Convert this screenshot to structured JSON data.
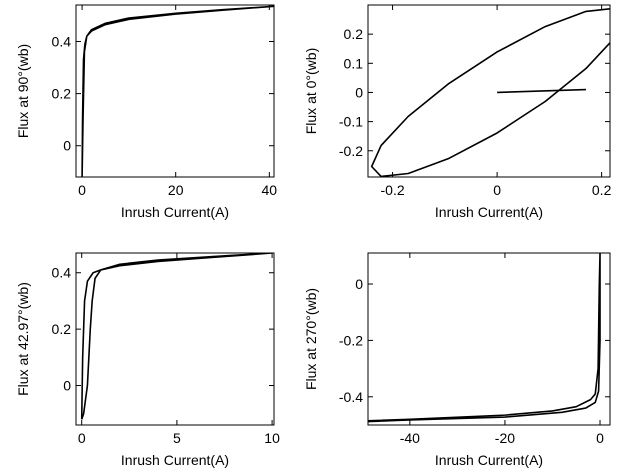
{
  "chart_data": [
    {
      "type": "line",
      "xlabel": "Inrush Current(A)",
      "ylabel": "Flux at 90°(wb)",
      "xlim": [
        -1.3,
        41
      ],
      "ylim": [
        -0.12,
        0.54
      ],
      "xticks": [
        0,
        20,
        40
      ],
      "yticks": [
        0,
        0.2,
        0.4
      ],
      "series": [
        {
          "color": "#000000",
          "x": [
            0,
            0.1,
            0.3,
            0.6,
            1,
            2,
            5,
            10,
            20,
            30,
            41,
            30,
            20,
            10,
            5,
            2,
            1,
            0.5,
            0.2,
            0
          ],
          "values": [
            -0.12,
            0.1,
            0.33,
            0.39,
            0.42,
            0.44,
            0.465,
            0.485,
            0.505,
            0.52,
            0.535,
            0.522,
            0.508,
            0.49,
            0.47,
            0.445,
            0.42,
            0.36,
            0.1,
            -0.12
          ]
        }
      ]
    },
    {
      "type": "line",
      "xlabel": "Inrush Current(A)",
      "ylabel": "Flux at 0°(wb)",
      "xlim": [
        -0.247,
        0.216
      ],
      "ylim": [
        -0.29,
        0.3
      ],
      "xticks": [
        -0.2,
        0,
        0.2
      ],
      "yticks": [
        -0.2,
        -0.1,
        0,
        0.1,
        0.2
      ],
      "series": [
        {
          "color": "#000000",
          "x": [
            0.24,
            0.222,
            0.17,
            0.092,
            0,
            -0.092,
            -0.17,
            -0.222,
            -0.24,
            -0.222,
            -0.17,
            -0.092,
            0,
            0.092,
            0.17,
            0.222,
            0.24
          ],
          "values": [
            0.254,
            0.288,
            0.278,
            0.226,
            0.139,
            0.031,
            -0.082,
            -0.182,
            -0.254,
            -0.288,
            -0.278,
            -0.226,
            -0.139,
            -0.031,
            0.082,
            0.182,
            0.254
          ]
        },
        {
          "color": "#000000",
          "x": [
            0,
            0.17
          ],
          "values": [
            0,
            0.01
          ]
        }
      ]
    },
    {
      "type": "line",
      "xlabel": "Inrush Current(A)",
      "ylabel": "Flux at 42.97°(wb)",
      "xlim": [
        -0.3,
        10.1
      ],
      "ylim": [
        -0.14,
        0.47
      ],
      "xticks": [
        0,
        5,
        10
      ],
      "yticks": [
        0,
        0.2,
        0.4
      ],
      "series": [
        {
          "color": "#000000",
          "x": [
            0,
            0.05,
            0.15,
            0.3,
            0.6,
            1,
            2,
            4,
            7,
            10,
            7,
            4,
            2,
            1,
            0.7,
            0.55,
            0.45,
            0.3,
            0.1,
            0
          ],
          "values": [
            -0.12,
            0.1,
            0.3,
            0.37,
            0.4,
            0.41,
            0.425,
            0.44,
            0.455,
            0.47,
            0.458,
            0.445,
            0.43,
            0.41,
            0.38,
            0.3,
            0.2,
            0,
            -0.1,
            -0.12
          ]
        }
      ]
    },
    {
      "type": "line",
      "xlabel": "Inrush Current(A)",
      "ylabel": "Flux at 270°(wb)",
      "xlim": [
        -48.8,
        2.1
      ],
      "ylim": [
        -0.5,
        0.11
      ],
      "xticks": [
        -40,
        -20,
        0
      ],
      "yticks": [
        -0.4,
        -0.2,
        0
      ],
      "series": [
        {
          "color": "#000000",
          "x": [
            -48.8,
            -40,
            -20,
            -10,
            -5,
            -2,
            -1,
            -0.4,
            -0.15,
            0,
            0,
            -0.3,
            -1,
            -3,
            -8,
            -20,
            -40,
            -48.8
          ],
          "values": [
            -0.485,
            -0.48,
            -0.465,
            -0.45,
            -0.435,
            -0.41,
            -0.39,
            -0.3,
            0,
            0.11,
            -0.2,
            -0.38,
            -0.42,
            -0.44,
            -0.455,
            -0.472,
            -0.482,
            -0.488
          ]
        }
      ]
    }
  ]
}
